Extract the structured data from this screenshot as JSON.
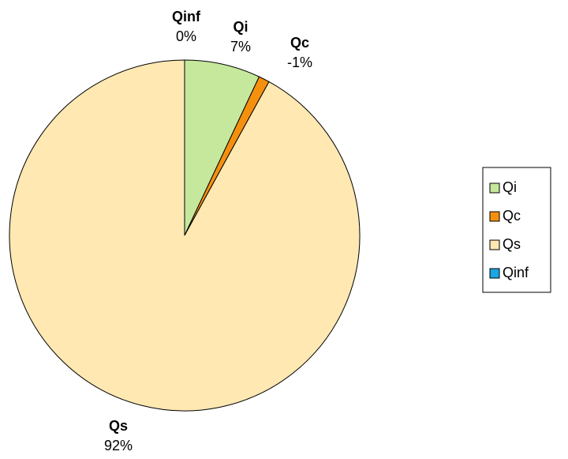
{
  "chart_data": {
    "type": "pie",
    "categories": [
      "Qi",
      "Qc",
      "Qs",
      "Qinf"
    ],
    "values": [
      7,
      -1,
      92,
      0
    ],
    "value_labels": [
      "7%",
      "-1%",
      "92%",
      "0%"
    ],
    "colors": [
      "#c6e89c",
      "#f5900f",
      "#ffe8b2",
      "#1ca6e3"
    ],
    "legend": "right"
  }
}
